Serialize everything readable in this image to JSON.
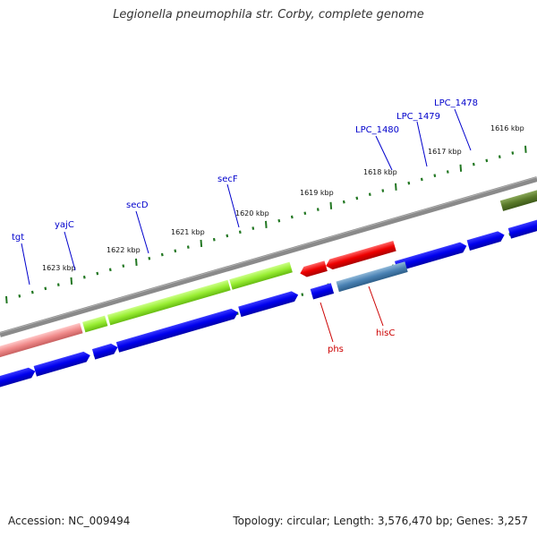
{
  "title": "Legionella pneumophila str. Corby, complete genome",
  "footer": {
    "accession": "Accession: NC_009494",
    "topology": "Topology: circular; Length: 3,576,470 bp; Genes: 3,257"
  },
  "colors": {
    "backbone": "#8a8a8a",
    "cds": "#0000ee",
    "forward_feature": "#99ee33",
    "reverse_feature": "#ee0000",
    "tick": "#227722",
    "forward_label": "#0000cc",
    "reverse_label": "#cc0000"
  },
  "scale_labels": [
    "1623 kbp",
    "1622 kbp",
    "1621 kbp",
    "1620 kbp",
    "1619 kbp",
    "1618 kbp",
    "1617 kbp",
    "1616 kbp"
  ],
  "forward_genes": [
    "tgt",
    "yajC",
    "secD",
    "secF",
    "LPC_1480",
    "LPC_1479",
    "LPC_1478"
  ],
  "reverse_genes": [
    "phs",
    "hisC"
  ]
}
